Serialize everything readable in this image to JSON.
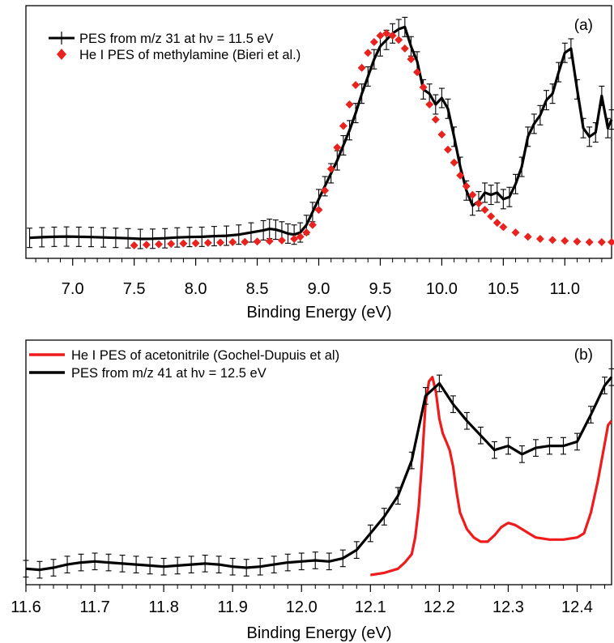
{
  "chart_data": [
    {
      "type": "line",
      "panel_label": "(a)",
      "xlabel": "Binding Energy (eV)",
      "ylabel": "",
      "xlim": [
        6.62,
        11.38
      ],
      "ylim": [
        0,
        1.05
      ],
      "xticks": [
        7.0,
        7.5,
        8.0,
        8.5,
        9.0,
        9.5,
        10.0,
        10.5,
        11.0
      ],
      "xtick_labels": [
        "7.0",
        "7.5",
        "8.0",
        "8.5",
        "9.0",
        "9.5",
        "10.0",
        "10.5",
        "11.0"
      ],
      "legend_position": "top-left",
      "series": [
        {
          "name": "PES from m/z 31 at hν = 11.5 eV",
          "style": "line-errorbars",
          "color": "#000000",
          "x": [
            6.65,
            6.75,
            6.85,
            6.95,
            7.05,
            7.15,
            7.25,
            7.35,
            7.45,
            7.55,
            7.65,
            7.75,
            7.85,
            7.95,
            8.05,
            8.15,
            8.25,
            8.35,
            8.45,
            8.55,
            8.6,
            8.65,
            8.7,
            8.75,
            8.8,
            8.85,
            8.9,
            8.95,
            9.0,
            9.05,
            9.1,
            9.15,
            9.2,
            9.25,
            9.3,
            9.35,
            9.4,
            9.45,
            9.5,
            9.55,
            9.6,
            9.65,
            9.7,
            9.75,
            9.8,
            9.85,
            9.9,
            9.95,
            10.0,
            10.05,
            10.1,
            10.15,
            10.2,
            10.25,
            10.3,
            10.35,
            10.4,
            10.45,
            10.5,
            10.55,
            10.6,
            10.65,
            10.7,
            10.75,
            10.8,
            10.85,
            10.9,
            10.95,
            11.0,
            11.05,
            11.1,
            11.15,
            11.2,
            11.25,
            11.3,
            11.35,
            11.38
          ],
          "y": [
            0.05,
            0.053,
            0.055,
            0.056,
            0.055,
            0.054,
            0.052,
            0.05,
            0.048,
            0.045,
            0.046,
            0.048,
            0.052,
            0.054,
            0.055,
            0.058,
            0.06,
            0.065,
            0.075,
            0.085,
            0.092,
            0.088,
            0.08,
            0.07,
            0.065,
            0.075,
            0.11,
            0.17,
            0.23,
            0.29,
            0.35,
            0.41,
            0.48,
            0.55,
            0.63,
            0.72,
            0.8,
            0.88,
            0.94,
            0.97,
            1.0,
            1.02,
            1.03,
            0.94,
            0.87,
            0.74,
            0.72,
            0.67,
            0.7,
            0.65,
            0.52,
            0.38,
            0.27,
            0.2,
            0.22,
            0.26,
            0.25,
            0.26,
            0.23,
            0.24,
            0.3,
            0.38,
            0.52,
            0.58,
            0.62,
            0.69,
            0.72,
            0.82,
            0.91,
            0.93,
            0.74,
            0.56,
            0.52,
            0.54,
            0.71,
            0.56,
            0.6
          ],
          "error": 0.045
        },
        {
          "name": "He I PES of methylamine (Bieri et al.)",
          "style": "markers",
          "color": "#e8231f",
          "x": [
            7.5,
            7.6,
            7.7,
            7.8,
            7.9,
            8.0,
            8.1,
            8.2,
            8.3,
            8.4,
            8.5,
            8.6,
            8.7,
            8.8,
            8.85,
            8.9,
            8.95,
            9.0,
            9.05,
            9.1,
            9.15,
            9.2,
            9.25,
            9.3,
            9.35,
            9.4,
            9.45,
            9.5,
            9.55,
            9.6,
            9.65,
            9.7,
            9.75,
            9.8,
            9.85,
            9.9,
            9.95,
            10.0,
            10.05,
            10.1,
            10.15,
            10.2,
            10.25,
            10.3,
            10.35,
            10.4,
            10.45,
            10.5,
            10.6,
            10.7,
            10.8,
            10.9,
            11.0,
            11.1,
            11.2,
            11.3,
            11.38
          ],
          "y": [
            0.015,
            0.018,
            0.02,
            0.022,
            0.024,
            0.025,
            0.027,
            0.028,
            0.03,
            0.031,
            0.033,
            0.035,
            0.038,
            0.045,
            0.055,
            0.075,
            0.11,
            0.18,
            0.27,
            0.37,
            0.47,
            0.57,
            0.67,
            0.76,
            0.84,
            0.91,
            0.96,
            0.99,
            1.0,
            0.99,
            0.97,
            0.93,
            0.88,
            0.82,
            0.75,
            0.67,
            0.6,
            0.53,
            0.46,
            0.4,
            0.34,
            0.29,
            0.25,
            0.21,
            0.18,
            0.15,
            0.12,
            0.1,
            0.075,
            0.055,
            0.045,
            0.04,
            0.036,
            0.033,
            0.03,
            0.03,
            0.03
          ]
        }
      ]
    },
    {
      "type": "line",
      "panel_label": "(b)",
      "xlabel": "Binding Energy (eV)",
      "ylabel": "",
      "xlim": [
        11.6,
        12.45
      ],
      "ylim": [
        0,
        1.05
      ],
      "xticks": [
        11.6,
        11.7,
        11.8,
        11.9,
        12.0,
        12.1,
        12.2,
        12.3,
        12.4
      ],
      "xtick_labels": [
        "11.6",
        "11.7",
        "11.8",
        "11.9",
        "12.0",
        "12.1",
        "12.2",
        "12.3",
        "12.4"
      ],
      "legend_position": "top-left",
      "series": [
        {
          "name": "He I PES of acetonitrile (Gochel-Dupuis et al)",
          "style": "line",
          "color": "#ee1c1c",
          "x": [
            12.1,
            12.12,
            12.14,
            12.15,
            12.16,
            12.165,
            12.17,
            12.175,
            12.18,
            12.185,
            12.19,
            12.195,
            12.2,
            12.205,
            12.21,
            12.215,
            12.22,
            12.225,
            12.23,
            12.24,
            12.25,
            12.26,
            12.27,
            12.28,
            12.29,
            12.3,
            12.31,
            12.32,
            12.33,
            12.34,
            12.36,
            12.38,
            12.4,
            12.41,
            12.42,
            12.43,
            12.44,
            12.445,
            12.45
          ],
          "y": [
            0.0,
            0.01,
            0.03,
            0.06,
            0.1,
            0.18,
            0.32,
            0.55,
            0.82,
            0.93,
            0.95,
            0.88,
            0.75,
            0.68,
            0.64,
            0.6,
            0.52,
            0.4,
            0.3,
            0.22,
            0.18,
            0.16,
            0.16,
            0.19,
            0.23,
            0.25,
            0.24,
            0.22,
            0.2,
            0.18,
            0.17,
            0.17,
            0.18,
            0.2,
            0.3,
            0.45,
            0.63,
            0.72,
            0.74
          ]
        },
        {
          "name": "PES from m/z 41 at hν = 12.5 eV",
          "style": "line-errorbars",
          "color": "#000000",
          "x": [
            11.6,
            11.62,
            11.64,
            11.66,
            11.68,
            11.7,
            11.72,
            11.74,
            11.76,
            11.78,
            11.8,
            11.82,
            11.84,
            11.86,
            11.88,
            11.9,
            11.92,
            11.94,
            11.96,
            11.98,
            12.0,
            12.02,
            12.04,
            12.06,
            12.08,
            12.1,
            12.12,
            12.14,
            12.16,
            12.18,
            12.2,
            12.22,
            12.24,
            12.26,
            12.28,
            12.3,
            12.32,
            12.34,
            12.36,
            12.38,
            12.4,
            12.42,
            12.44,
            12.45
          ],
          "y": [
            0.03,
            0.025,
            0.035,
            0.05,
            0.06,
            0.065,
            0.06,
            0.055,
            0.05,
            0.045,
            0.04,
            0.045,
            0.05,
            0.055,
            0.05,
            0.04,
            0.035,
            0.04,
            0.05,
            0.06,
            0.065,
            0.07,
            0.065,
            0.08,
            0.12,
            0.2,
            0.28,
            0.38,
            0.55,
            0.86,
            0.92,
            0.82,
            0.74,
            0.67,
            0.6,
            0.62,
            0.58,
            0.61,
            0.62,
            0.62,
            0.64,
            0.77,
            0.91,
            0.95
          ],
          "error": 0.04
        }
      ]
    }
  ]
}
